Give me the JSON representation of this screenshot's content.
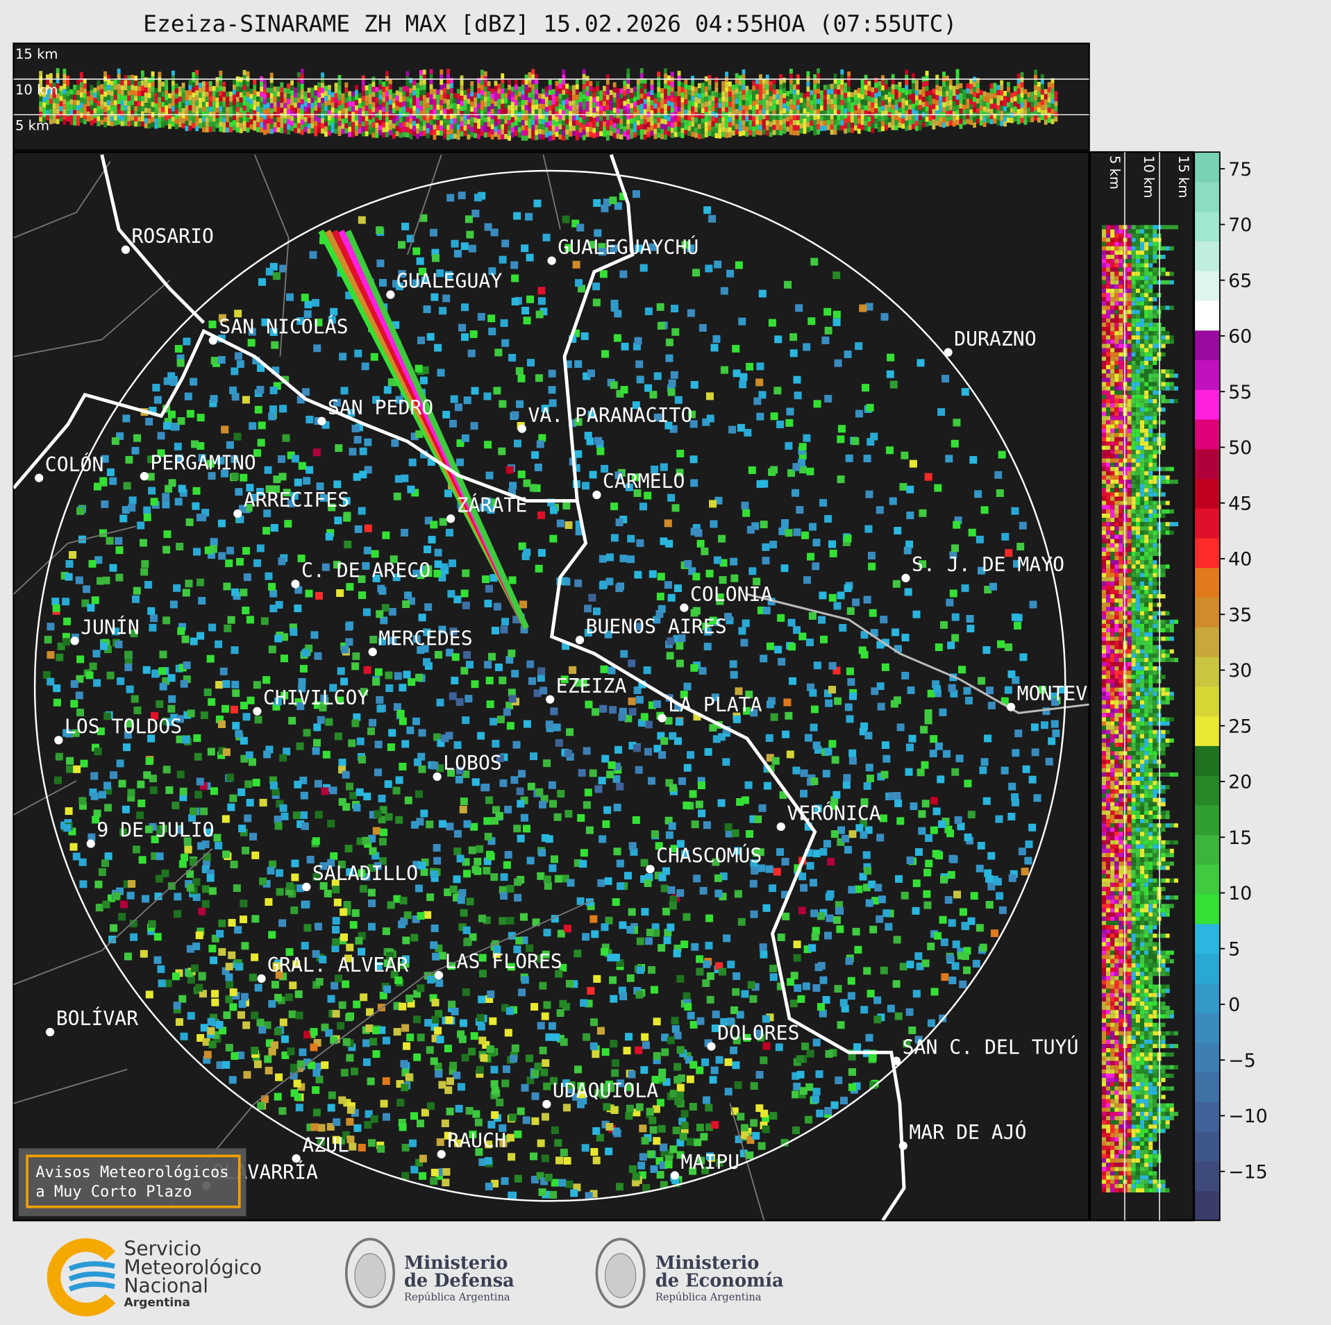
{
  "title": "Ezeiza-SINARAME ZH MAX [dBZ] 15.02.2026 04:55HOA (07:55UTC)",
  "top_panel": {
    "labels": [
      "15 km",
      "10 km",
      "5 km"
    ]
  },
  "side_panel": {
    "labels": [
      "5 km",
      "10 km",
      "15 km"
    ]
  },
  "colorbar": {
    "lim": [
      -19.4,
      76.5
    ],
    "ticks": [
      75,
      70,
      65,
      60,
      55,
      50,
      45,
      40,
      35,
      30,
      25,
      20,
      15,
      10,
      5,
      0,
      {
        "value": -5,
        "label": "−5"
      },
      {
        "value": -10,
        "label": "−10"
      },
      {
        "value": -15,
        "label": "−15"
      }
    ],
    "colors": [
      "#3a3d6a",
      "#3e4a7a",
      "#3f568a",
      "#3f6398",
      "#3f70a6",
      "#3d7eb3",
      "#3a8cbf",
      "#3399c9",
      "#2aa8d4",
      "#2ab6de",
      "#35e035",
      "#3fca3f",
      "#3cb53c",
      "#309e30",
      "#268826",
      "#1f721f",
      "#e8e831",
      "#d6d636",
      "#c9c540",
      "#c8a83a",
      "#d08c2a",
      "#e07a1c",
      "#ff2a2a",
      "#e0102a",
      "#c00020",
      "#b0003a",
      "#e0007a",
      "#ff20e0",
      "#c010c0",
      "#9a0aa0",
      "#ffffff",
      "#e0f5ee",
      "#bfeee0",
      "#a0e6d0",
      "#8cdcc0",
      "#7ad2b4"
    ]
  },
  "cities": [
    "ROSARIO",
    "GUALEGUAYCHÚ",
    "GUALEGUAY",
    "SAN NICOLÁS",
    "DURAZNO",
    "SAN PEDRO",
    "VA. PARANACITO",
    "COLÓN",
    "PERGAMINO",
    "CARMELO",
    "ARRECIFES",
    "ZÁRATE",
    "S. J. DE MAYO",
    "C. DE ARECO",
    "COLONIA",
    "BUENOS AIRES",
    "JUNÍN",
    "MERCEDES",
    "EZEIZA",
    "MONTEV",
    "CHIVILCOY",
    "LA PLATA",
    "LOS TOLDOS",
    "LOBOS",
    "VERÓNICA",
    "9 DE JULIO",
    "CHASCOMÚS",
    "SALADILLO",
    "GRAL. ALVEAR",
    "LAS FLORES",
    "BOLÍVAR",
    "DOLORES",
    "SAN C. DEL TUYÚ",
    "UDAQUIOLA",
    "MAR DE AJÓ",
    "RAUCH",
    "AZUL",
    "OLAVARRÍA",
    "MAIPU"
  ],
  "notice": [
    "Avisos Meteorológicos",
    "a Muy Corto Plazo"
  ],
  "logos": {
    "smn": [
      "Servicio",
      "Meteorológico",
      "Nacional",
      "Argentina"
    ],
    "defensa": [
      "Ministerio",
      "de Defensa",
      "República Argentina"
    ],
    "economia": [
      "Ministerio",
      "de Economía",
      "República Argentina"
    ]
  }
}
